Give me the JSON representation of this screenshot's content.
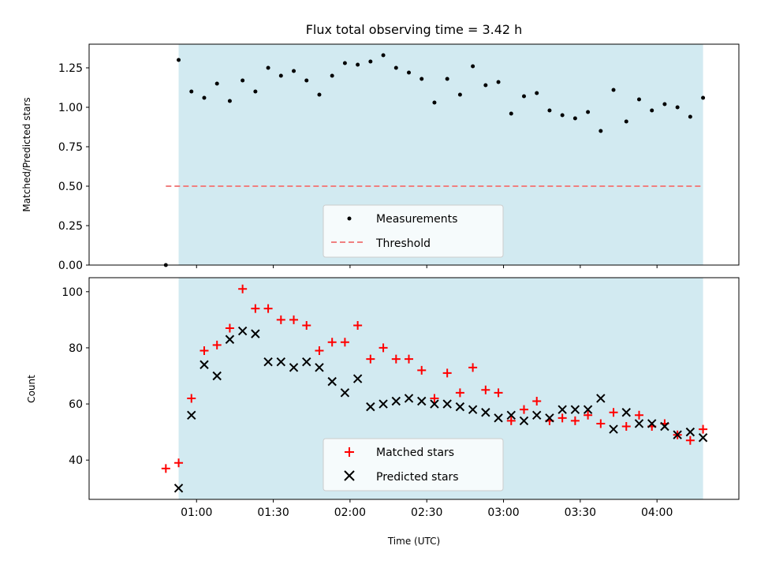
{
  "chart_data": [
    {
      "type": "scatter",
      "title": "Flux total observing time = 3.42 h",
      "xlabel": "",
      "ylabel": "Matched/Predicted stars",
      "ylim": [
        0,
        1.4
      ],
      "yticks": [
        0.0,
        0.25,
        0.5,
        0.75,
        1.0,
        1.25
      ],
      "ytick_labels": [
        "0.00",
        "0.25",
        "0.50",
        "0.75",
        "1.00",
        "1.25"
      ],
      "x_minutes_range": [
        18,
        272
      ],
      "xticks_minutes": [
        60,
        90,
        120,
        150,
        180,
        210,
        240
      ],
      "legend_position": "lower-center",
      "shaded_interval_minutes": [
        53,
        258
      ],
      "shade_color": "#add8e6",
      "series": [
        {
          "name": "Measurements",
          "marker": "dot",
          "color": "#000000",
          "x_minutes": [
            48,
            53,
            58,
            63,
            68,
            73,
            78,
            83,
            88,
            93,
            98,
            103,
            108,
            113,
            118,
            123,
            128,
            133,
            138,
            143,
            148,
            153,
            158,
            163,
            168,
            173,
            178,
            183,
            188,
            193,
            198,
            203,
            208,
            213,
            218,
            223,
            228,
            233,
            238,
            243,
            248,
            253,
            258
          ],
          "y": [
            0.0,
            1.3,
            1.1,
            1.06,
            1.15,
            1.04,
            1.17,
            1.1,
            1.25,
            1.2,
            1.23,
            1.17,
            1.08,
            1.2,
            1.28,
            1.27,
            1.29,
            1.33,
            1.25,
            1.22,
            1.18,
            1.03,
            1.18,
            1.08,
            1.26,
            1.14,
            1.16,
            0.96,
            1.07,
            1.09,
            0.98,
            0.95,
            0.93,
            0.97,
            0.85,
            1.11,
            0.91,
            1.05,
            0.98,
            1.02,
            1.0,
            0.94,
            1.06
          ]
        },
        {
          "name": "Threshold",
          "marker": "dashed-line",
          "color": "#f08080",
          "x_minutes": [
            48,
            258
          ],
          "y": [
            0.5,
            0.5
          ]
        }
      ]
    },
    {
      "type": "scatter",
      "title": "",
      "xlabel": "Time (UTC)",
      "ylabel": "Count",
      "ylim": [
        26,
        105
      ],
      "yticks": [
        40,
        60,
        80,
        100
      ],
      "ytick_labels": [
        "40",
        "60",
        "80",
        "100"
      ],
      "x_minutes_range": [
        18,
        272
      ],
      "xticks_minutes": [
        60,
        90,
        120,
        150,
        180,
        210,
        240
      ],
      "xtick_labels": [
        "01:00",
        "01:30",
        "02:00",
        "02:30",
        "03:00",
        "03:30",
        "04:00"
      ],
      "legend_position": "lower-center",
      "shaded_interval_minutes": [
        53,
        258
      ],
      "shade_color": "#add8e6",
      "series": [
        {
          "name": "Matched stars",
          "marker": "plus",
          "color": "#ff0000",
          "x_minutes": [
            48,
            53,
            58,
            63,
            68,
            73,
            78,
            83,
            88,
            93,
            98,
            103,
            108,
            113,
            118,
            123,
            128,
            133,
            138,
            143,
            148,
            153,
            158,
            163,
            168,
            173,
            178,
            183,
            188,
            193,
            198,
            203,
            208,
            213,
            218,
            223,
            228,
            233,
            238,
            243,
            248,
            253,
            258
          ],
          "y": [
            37,
            39,
            62,
            79,
            81,
            87,
            101,
            94,
            94,
            90,
            90,
            88,
            79,
            82,
            82,
            88,
            76,
            80,
            76,
            76,
            72,
            62,
            71,
            64,
            73,
            65,
            64,
            54,
            58,
            61,
            54,
            55,
            54,
            56,
            53,
            57,
            52,
            56,
            52,
            53,
            49,
            47,
            51
          ]
        },
        {
          "name": "Predicted stars",
          "marker": "x",
          "color": "#000000",
          "x_minutes": [
            53,
            58,
            63,
            68,
            73,
            78,
            83,
            88,
            93,
            98,
            103,
            108,
            113,
            118,
            123,
            128,
            133,
            138,
            143,
            148,
            153,
            158,
            163,
            168,
            173,
            178,
            183,
            188,
            193,
            198,
            203,
            208,
            213,
            218,
            223,
            228,
            233,
            238,
            243,
            248,
            253,
            258
          ],
          "y": [
            30,
            56,
            74,
            70,
            83,
            86,
            85,
            75,
            75,
            73,
            75,
            73,
            68,
            64,
            69,
            59,
            60,
            61,
            62,
            61,
            60,
            60,
            59,
            58,
            57,
            55,
            56,
            54,
            56,
            55,
            58,
            58,
            58,
            62,
            51,
            57,
            53,
            53,
            52,
            49,
            50,
            48
          ]
        }
      ]
    }
  ]
}
